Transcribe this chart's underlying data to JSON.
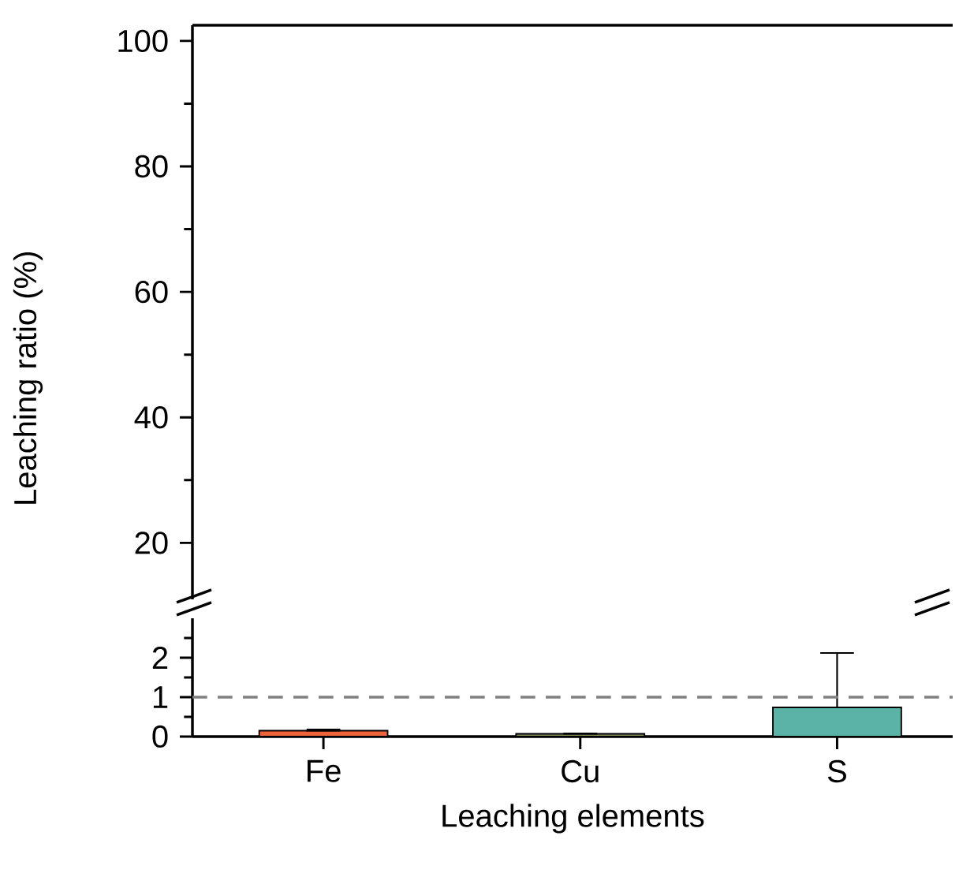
{
  "chart_data": [
    {
      "type": "bar",
      "values": [
        null,
        null,
        null
      ],
      "ylabel": "Leaching ratio (%)",
      "ylim": [
        11,
        102.5
      ],
      "yticks": [
        20,
        {
          "value": 30,
          "label": null
        },
        40,
        {
          "value": 50,
          "label": null
        },
        60,
        {
          "value": 70,
          "label": null
        },
        80,
        {
          "value": 90,
          "label": null
        },
        100
      ],
      "tick_labels": "y"
    },
    {
      "type": "bar",
      "categories": [
        "Fe",
        "Cu",
        "S"
      ],
      "values": [
        0.15,
        0.07,
        0.74
      ],
      "colors": [
        "#f0643c",
        "#7f8c5a",
        "#5bb3a8"
      ],
      "errors": [
        [
          0.15,
          0.18
        ],
        [
          0.07,
          0.08
        ],
        [
          0.74,
          2.12
        ]
      ],
      "xlabel": "Leaching elements",
      "ylim": [
        0,
        3
      ],
      "yticks": [
        0,
        {
          "value": 0.5,
          "label": null
        },
        1,
        {
          "value": 1.5,
          "label": null
        },
        2,
        {
          "value": 2.5,
          "label": null
        }
      ],
      "ref_lines": [
        {
          "axis": "y",
          "value": 1,
          "color": "#808080",
          "line_style": "dashed"
        }
      ]
    }
  ]
}
